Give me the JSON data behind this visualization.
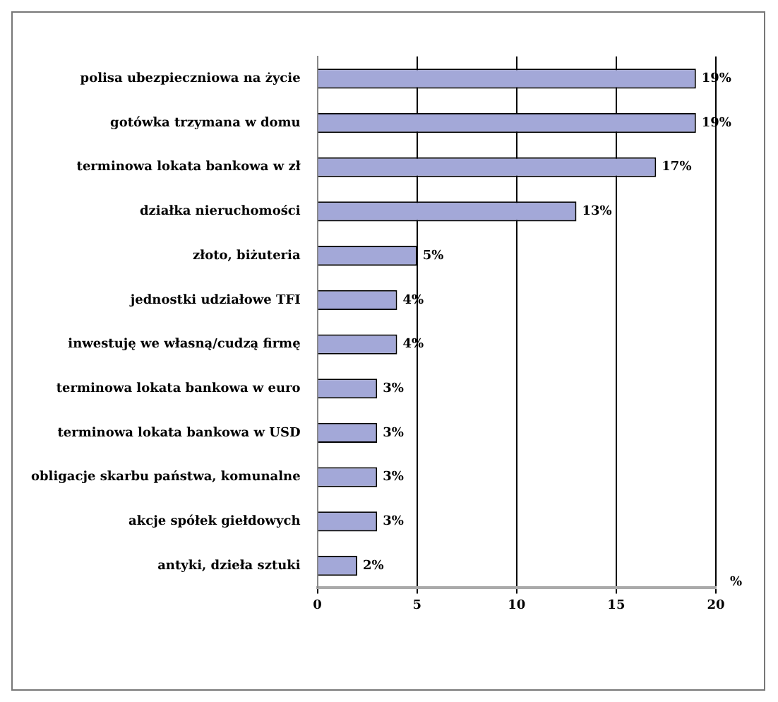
{
  "chart_data": {
    "type": "bar",
    "orientation": "horizontal",
    "xlabel": "%",
    "categories": [
      "polisa ubezpieczniowa na życie",
      "gotówka trzymana w domu",
      "terminowa lokata bankowa w zł",
      "działka nieruchomości",
      "złoto, biżuteria",
      "jednostki udziałowe TFI",
      "inwestuję we własną/cudzą firmę",
      "terminowa lokata bankowa w euro",
      "terminowa lokata bankowa w USD",
      "obligacje skarbu państwa, komunalne",
      "akcje spółek giełdowych",
      "antyki, dzieła sztuki"
    ],
    "values": [
      19,
      19,
      17,
      13,
      5,
      4,
      4,
      3,
      3,
      3,
      3,
      2
    ],
    "value_labels": [
      "19%",
      "19%",
      "17%",
      "13%",
      "5%",
      "4%",
      "4%",
      "3%",
      "3%",
      "3%",
      "3%",
      "2%"
    ],
    "color": "#a3a8d8",
    "xlim": [
      0,
      20
    ],
    "xticks": [
      0,
      5,
      10,
      15,
      20
    ],
    "grid": "x",
    "legend": false
  }
}
